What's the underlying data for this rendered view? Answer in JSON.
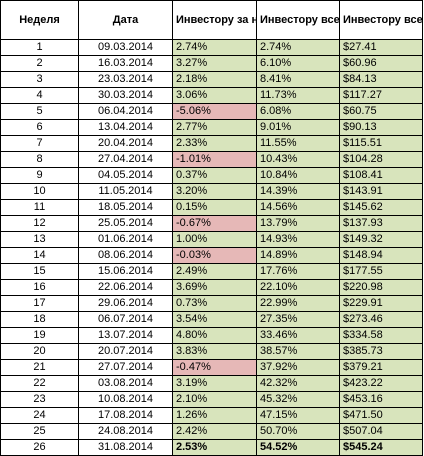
{
  "headers": {
    "week": "Неделя",
    "date": "Дата",
    "weekly": "Инвестору за неделю (%)",
    "total": "Инвестору всего (%)",
    "usd": "Инвестору всего ($)"
  },
  "colors": {
    "positive": "#d8e4bc",
    "negative": "#e6b8b7"
  },
  "rows": [
    {
      "week": "1",
      "date": "09.03.2014",
      "weekly": "2.74%",
      "total": "2.74%",
      "usd": "$27.41",
      "status": "pos"
    },
    {
      "week": "2",
      "date": "16.03.2014",
      "weekly": "3.27%",
      "total": "6.10%",
      "usd": "$60.96",
      "status": "pos"
    },
    {
      "week": "3",
      "date": "23.03.2014",
      "weekly": "2.18%",
      "total": "8.41%",
      "usd": "$84.13",
      "status": "pos"
    },
    {
      "week": "4",
      "date": "30.03.2014",
      "weekly": "3.06%",
      "total": "11.73%",
      "usd": "$117.27",
      "status": "pos"
    },
    {
      "week": "5",
      "date": "06.04.2014",
      "weekly": "-5.06%",
      "total": "6.08%",
      "usd": "$60.75",
      "status": "neg"
    },
    {
      "week": "6",
      "date": "13.04.2014",
      "weekly": "2.77%",
      "total": "9.01%",
      "usd": "$90.13",
      "status": "pos"
    },
    {
      "week": "7",
      "date": "20.04.2014",
      "weekly": "2.33%",
      "total": "11.55%",
      "usd": "$115.51",
      "status": "pos"
    },
    {
      "week": "8",
      "date": "27.04.2014",
      "weekly": "-1.01%",
      "total": "10.43%",
      "usd": "$104.28",
      "status": "neg"
    },
    {
      "week": "9",
      "date": "04.05.2014",
      "weekly": "0.37%",
      "total": "10.84%",
      "usd": "$108.41",
      "status": "pos"
    },
    {
      "week": "10",
      "date": "11.05.2014",
      "weekly": "3.20%",
      "total": "14.39%",
      "usd": "$143.91",
      "status": "pos"
    },
    {
      "week": "11",
      "date": "18.05.2014",
      "weekly": "0.15%",
      "total": "14.56%",
      "usd": "$145.62",
      "status": "pos"
    },
    {
      "week": "12",
      "date": "25.05.2014",
      "weekly": "-0.67%",
      "total": "13.79%",
      "usd": "$137.93",
      "status": "neg"
    },
    {
      "week": "13",
      "date": "01.06.2014",
      "weekly": "1.00%",
      "total": "14.93%",
      "usd": "$149.32",
      "status": "pos"
    },
    {
      "week": "14",
      "date": "08.06.2014",
      "weekly": "-0.03%",
      "total": "14.89%",
      "usd": "$148.94",
      "status": "neg"
    },
    {
      "week": "15",
      "date": "15.06.2014",
      "weekly": "2.49%",
      "total": "17.76%",
      "usd": "$177.55",
      "status": "pos"
    },
    {
      "week": "16",
      "date": "22.06.2014",
      "weekly": "3.69%",
      "total": "22.10%",
      "usd": "$220.98",
      "status": "pos"
    },
    {
      "week": "17",
      "date": "29.06.2014",
      "weekly": "0.73%",
      "total": "22.99%",
      "usd": "$229.91",
      "status": "pos"
    },
    {
      "week": "18",
      "date": "06.07.2014",
      "weekly": "3.54%",
      "total": "27.35%",
      "usd": "$273.46",
      "status": "pos"
    },
    {
      "week": "19",
      "date": "13.07.2014",
      "weekly": "4.80%",
      "total": "33.46%",
      "usd": "$334.58",
      "status": "pos"
    },
    {
      "week": "20",
      "date": "20.07.2014",
      "weekly": "3.83%",
      "total": "38.57%",
      "usd": "$385.73",
      "status": "pos"
    },
    {
      "week": "21",
      "date": "27.07.2014",
      "weekly": "-0.47%",
      "total": "37.92%",
      "usd": "$379.21",
      "status": "neg"
    },
    {
      "week": "22",
      "date": "03.08.2014",
      "weekly": "3.19%",
      "total": "42.32%",
      "usd": "$423.22",
      "status": "pos"
    },
    {
      "week": "23",
      "date": "10.08.2014",
      "weekly": "2.10%",
      "total": "45.32%",
      "usd": "$453.16",
      "status": "pos"
    },
    {
      "week": "24",
      "date": "17.08.2014",
      "weekly": "1.26%",
      "total": "47.15%",
      "usd": "$471.50",
      "status": "pos"
    },
    {
      "week": "25",
      "date": "24.08.2014",
      "weekly": "2.42%",
      "total": "50.70%",
      "usd": "$507.04",
      "status": "pos"
    },
    {
      "week": "26",
      "date": "31.08.2014",
      "weekly": "2.53%",
      "total": "54.52%",
      "usd": "$545.24",
      "status": "pos"
    }
  ]
}
